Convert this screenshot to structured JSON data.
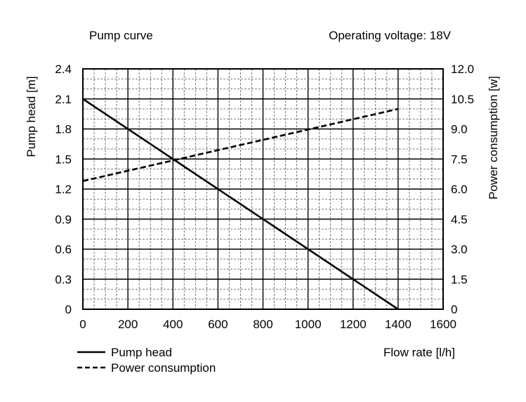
{
  "chart_data": {
    "type": "line",
    "title": "Pump curve",
    "subtitle": "Operating voltage: 18V",
    "xlabel": "Flow rate [l/h]",
    "ylabel": "Pump head [m]",
    "y2label": "Power consumption [w]",
    "xlim": [
      0,
      1600
    ],
    "ylim": [
      0,
      2.4
    ],
    "y2lim": [
      0,
      12.0
    ],
    "x_ticks": [
      "0",
      "200",
      "400",
      "600",
      "800",
      "1000",
      "1200",
      "1400",
      "1600"
    ],
    "y_ticks": [
      "0",
      "0.3",
      "0.6",
      "0.9",
      "1.2",
      "1.5",
      "1.8",
      "2.1",
      "2.4"
    ],
    "y2_ticks": [
      "0",
      "1.5",
      "3.0",
      "4.5",
      "6.0",
      "7.5",
      "9.0",
      "10.5",
      "12.0"
    ],
    "grid": true,
    "legend_position": "bottom-left",
    "series": [
      {
        "name": "Pump head",
        "axis": "left",
        "style": "solid",
        "color": "#000000",
        "x": [
          0,
          1400
        ],
        "y": [
          2.1,
          0
        ]
      },
      {
        "name": "Power consumption",
        "axis": "right",
        "style": "dashed",
        "color": "#000000",
        "x": [
          0,
          1400
        ],
        "y": [
          6.4,
          10.0
        ]
      }
    ]
  }
}
